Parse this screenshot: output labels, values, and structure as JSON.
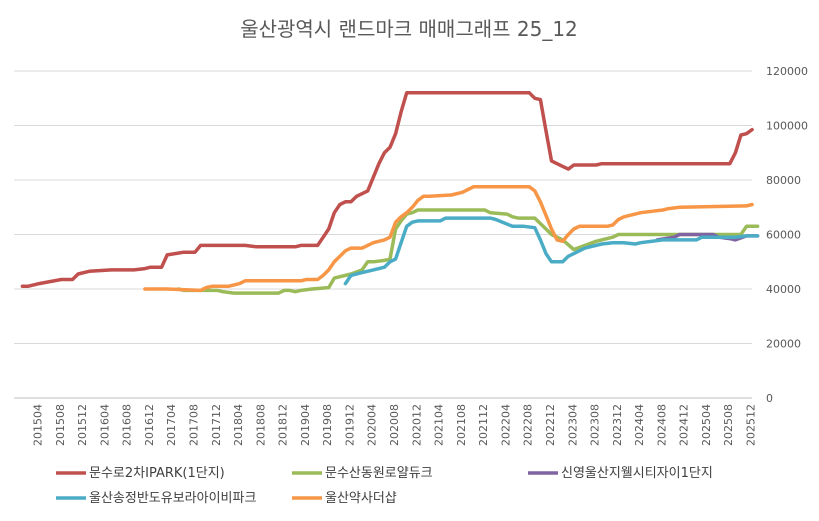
{
  "chart_data": {
    "type": "line",
    "title": "울산광역시 랜드마크 매매그래프 25_12",
    "ylim": [
      0,
      120000
    ],
    "y_ticks": [
      "0",
      "20000",
      "40000",
      "60000",
      "80000",
      "100000",
      "120000"
    ],
    "x_tick_labels": [
      "201504",
      "201508",
      "201512",
      "201604",
      "201608",
      "201612",
      "201704",
      "201708",
      "201712",
      "201804",
      "201808",
      "201812",
      "201904",
      "201908",
      "201912",
      "202004",
      "202008",
      "202012",
      "202104",
      "202108",
      "202112",
      "202204",
      "202208",
      "202212",
      "202304",
      "202308",
      "202312",
      "202404",
      "202408",
      "202412",
      "202504",
      "202508",
      "202512"
    ],
    "grid": true,
    "legend_position": "bottom",
    "series": [
      {
        "name": "문수로2차IPARK(1단지)",
        "color": "#c0504d",
        "points": [
          [
            "201502",
            41000
          ],
          [
            "201503",
            41000
          ],
          [
            "201505",
            42000
          ],
          [
            "201509",
            43500
          ],
          [
            "201511",
            43500
          ],
          [
            "201512",
            45500
          ],
          [
            "201602",
            46500
          ],
          [
            "201606",
            47000
          ],
          [
            "201610",
            47000
          ],
          [
            "201612",
            47500
          ],
          [
            "201701",
            48000
          ],
          [
            "201703",
            48000
          ],
          [
            "201704",
            52500
          ],
          [
            "201707",
            53500
          ],
          [
            "201709",
            53500
          ],
          [
            "201710",
            56000
          ],
          [
            "201806",
            56000
          ],
          [
            "201808",
            55500
          ],
          [
            "201903",
            55500
          ],
          [
            "201904",
            56000
          ],
          [
            "201907",
            56000
          ],
          [
            "201908",
            59000
          ],
          [
            "201909",
            62000
          ],
          [
            "201910",
            68000
          ],
          [
            "201911",
            71000
          ],
          [
            "201912",
            72000
          ],
          [
            "202001",
            72000
          ],
          [
            "202002",
            74000
          ],
          [
            "202004",
            76000
          ],
          [
            "202005",
            81000
          ],
          [
            "202006",
            86000
          ],
          [
            "202007",
            90000
          ],
          [
            "202008",
            92000
          ],
          [
            "202009",
            97000
          ],
          [
            "202010",
            105000
          ],
          [
            "202011",
            112000
          ],
          [
            "202209",
            112000
          ],
          [
            "202210",
            110000
          ],
          [
            "202211",
            109500
          ],
          [
            "202212",
            98000
          ],
          [
            "202301",
            87000
          ],
          [
            "202303",
            85000
          ],
          [
            "202304",
            84000
          ],
          [
            "202305",
            85500
          ],
          [
            "202309",
            85500
          ],
          [
            "202310",
            86000
          ],
          [
            "202509",
            86000
          ],
          [
            "202510",
            90000
          ],
          [
            "202511",
            96500
          ],
          [
            "202512",
            97000
          ],
          [
            "202601",
            98500
          ]
        ]
      },
      {
        "name": "문수산동원로얄듀크",
        "color": "#9bbb59",
        "points": [
          [
            "201706",
            40000
          ],
          [
            "201707",
            39500
          ],
          [
            "201801",
            39500
          ],
          [
            "201802",
            39000
          ],
          [
            "201804",
            38500
          ],
          [
            "201811",
            38500
          ],
          [
            "201812",
            38500
          ],
          [
            "201901",
            39500
          ],
          [
            "201902",
            39500
          ],
          [
            "201903",
            39000
          ],
          [
            "201904",
            39500
          ],
          [
            "201906",
            40000
          ],
          [
            "201909",
            40500
          ],
          [
            "201910",
            44000
          ],
          [
            "202001",
            45500
          ],
          [
            "202003",
            47000
          ],
          [
            "202004",
            50000
          ],
          [
            "202005",
            50000
          ],
          [
            "202007",
            50500
          ],
          [
            "202008",
            51000
          ],
          [
            "202009",
            62000
          ],
          [
            "202010",
            65000
          ],
          [
            "202011",
            67500
          ],
          [
            "202012",
            68000
          ],
          [
            "202101",
            69000
          ],
          [
            "202201",
            69000
          ],
          [
            "202202",
            68000
          ],
          [
            "202205",
            67500
          ],
          [
            "202206",
            66500
          ],
          [
            "202207",
            66000
          ],
          [
            "202210",
            66000
          ],
          [
            "202212",
            62000
          ],
          [
            "202301",
            60000
          ],
          [
            "202302",
            59000
          ],
          [
            "202303",
            58000
          ],
          [
            "202305",
            54500
          ],
          [
            "202307",
            56000
          ],
          [
            "202309",
            57500
          ],
          [
            "202312",
            59000
          ],
          [
            "202401",
            60000
          ],
          [
            "202511",
            60000
          ],
          [
            "202512",
            63000
          ],
          [
            "202602",
            63000
          ]
        ]
      },
      {
        "name": "신영울산지웰시티자이1단지",
        "color": "#8064a2",
        "points": [
          [
            "202408",
            58000
          ],
          [
            "202411",
            59000
          ],
          [
            "202412",
            60000
          ],
          [
            "202506",
            60000
          ],
          [
            "202507",
            59000
          ],
          [
            "202509",
            58500
          ],
          [
            "202510",
            58000
          ],
          [
            "202512",
            59500
          ],
          [
            "202602",
            59500
          ]
        ]
      },
      {
        "name": "울산송정반도유보라아이비파크",
        "color": "#4bacc6",
        "points": [
          [
            "201912",
            42000
          ],
          [
            "202001",
            45000
          ],
          [
            "202003",
            46000
          ],
          [
            "202005",
            47000
          ],
          [
            "202007",
            48000
          ],
          [
            "202008",
            50000
          ],
          [
            "202009",
            51000
          ],
          [
            "202010",
            57000
          ],
          [
            "202011",
            63000
          ],
          [
            "202012",
            64500
          ],
          [
            "202101",
            65000
          ],
          [
            "202105",
            65000
          ],
          [
            "202106",
            66000
          ],
          [
            "202202",
            66000
          ],
          [
            "202203",
            65500
          ],
          [
            "202206",
            63000
          ],
          [
            "202208",
            63000
          ],
          [
            "202210",
            62500
          ],
          [
            "202211",
            58000
          ],
          [
            "202212",
            53000
          ],
          [
            "202301",
            50000
          ],
          [
            "202303",
            50000
          ],
          [
            "202304",
            52000
          ],
          [
            "202305",
            53000
          ],
          [
            "202306",
            54000
          ],
          [
            "202307",
            55000
          ],
          [
            "202310",
            56500
          ],
          [
            "202312",
            57000
          ],
          [
            "202402",
            57000
          ],
          [
            "202404",
            56500
          ],
          [
            "202405",
            57000
          ],
          [
            "202409",
            58000
          ],
          [
            "202411",
            58000
          ],
          [
            "202503",
            58000
          ],
          [
            "202504",
            59000
          ],
          [
            "202510",
            59000
          ],
          [
            "202512",
            59500
          ],
          [
            "202602",
            59500
          ]
        ]
      },
      {
        "name": "울산약사더샵",
        "color": "#f79646",
        "points": [
          [
            "201612",
            40000
          ],
          [
            "201704",
            40000
          ],
          [
            "201710",
            39500
          ],
          [
            "201711",
            40500
          ],
          [
            "201712",
            41000
          ],
          [
            "201803",
            41000
          ],
          [
            "201805",
            42000
          ],
          [
            "201806",
            43000
          ],
          [
            "201810",
            43000
          ],
          [
            "201904",
            43000
          ],
          [
            "201905",
            43500
          ],
          [
            "201907",
            43500
          ],
          [
            "201908",
            45000
          ],
          [
            "201909",
            47000
          ],
          [
            "201910",
            50000
          ],
          [
            "201911",
            52000
          ],
          [
            "201912",
            54000
          ],
          [
            "202001",
            55000
          ],
          [
            "202003",
            55000
          ],
          [
            "202004",
            56000
          ],
          [
            "202005",
            57000
          ],
          [
            "202007",
            58000
          ],
          [
            "202008",
            59000
          ],
          [
            "202009",
            64500
          ],
          [
            "202010",
            66500
          ],
          [
            "202011",
            68000
          ],
          [
            "202012",
            70000
          ],
          [
            "202101",
            72500
          ],
          [
            "202102",
            74000
          ],
          [
            "202103",
            74000
          ],
          [
            "202107",
            74500
          ],
          [
            "202109",
            75500
          ],
          [
            "202110",
            76500
          ],
          [
            "202111",
            77500
          ],
          [
            "202209",
            77500
          ],
          [
            "202210",
            76000
          ],
          [
            "202211",
            72000
          ],
          [
            "202212",
            67000
          ],
          [
            "202301",
            62000
          ],
          [
            "202302",
            58000
          ],
          [
            "202303",
            57500
          ],
          [
            "202304",
            60000
          ],
          [
            "202305",
            62000
          ],
          [
            "202306",
            63000
          ],
          [
            "202311",
            63000
          ],
          [
            "202312",
            63500
          ],
          [
            "202401",
            65500
          ],
          [
            "202402",
            66500
          ],
          [
            "202404",
            67500
          ],
          [
            "202405",
            68000
          ],
          [
            "202407",
            68500
          ],
          [
            "202409",
            69000
          ],
          [
            "202410",
            69500
          ],
          [
            "202412",
            70000
          ],
          [
            "202512",
            70500
          ],
          [
            "202601",
            71000
          ]
        ]
      }
    ]
  }
}
